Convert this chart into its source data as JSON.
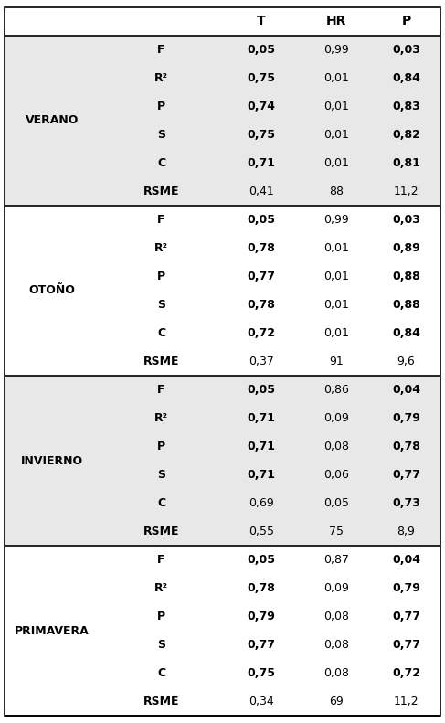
{
  "seasons": [
    "VERANO",
    "OTOÑO",
    "INVIERNO",
    "PRIMAVERA"
  ],
  "metrics": [
    "F",
    "R²",
    "P",
    "S",
    "C",
    "RSME"
  ],
  "table_data": {
    "VERANO": {
      "F": {
        "T": "0,05",
        "HR": "0,99",
        "P": "0,03",
        "T_bold": true,
        "HR_bold": false,
        "P_bold": true
      },
      "R²": {
        "T": "0,75",
        "HR": "0,01",
        "P": "0,84",
        "T_bold": true,
        "HR_bold": false,
        "P_bold": true
      },
      "P": {
        "T": "0,74",
        "HR": "0,01",
        "P": "0,83",
        "T_bold": true,
        "HR_bold": false,
        "P_bold": true
      },
      "S": {
        "T": "0,75",
        "HR": "0,01",
        "P": "0,82",
        "T_bold": true,
        "HR_bold": false,
        "P_bold": true
      },
      "C": {
        "T": "0,71",
        "HR": "0,01",
        "P": "0,81",
        "T_bold": true,
        "HR_bold": false,
        "P_bold": true
      },
      "RSME": {
        "T": "0,41",
        "HR": "88",
        "P": "11,2",
        "T_bold": false,
        "HR_bold": false,
        "P_bold": false
      }
    },
    "OTOÑO": {
      "F": {
        "T": "0,05",
        "HR": "0,99",
        "P": "0,03",
        "T_bold": true,
        "HR_bold": false,
        "P_bold": true
      },
      "R²": {
        "T": "0,78",
        "HR": "0,01",
        "P": "0,89",
        "T_bold": true,
        "HR_bold": false,
        "P_bold": true
      },
      "P": {
        "T": "0,77",
        "HR": "0,01",
        "P": "0,88",
        "T_bold": true,
        "HR_bold": false,
        "P_bold": true
      },
      "S": {
        "T": "0,78",
        "HR": "0,01",
        "P": "0,88",
        "T_bold": true,
        "HR_bold": false,
        "P_bold": true
      },
      "C": {
        "T": "0,72",
        "HR": "0,01",
        "P": "0,84",
        "T_bold": true,
        "HR_bold": false,
        "P_bold": true
      },
      "RSME": {
        "T": "0,37",
        "HR": "91",
        "P": "9,6",
        "T_bold": false,
        "HR_bold": false,
        "P_bold": false
      }
    },
    "INVIERNO": {
      "F": {
        "T": "0,05",
        "HR": "0,86",
        "P": "0,04",
        "T_bold": true,
        "HR_bold": false,
        "P_bold": true
      },
      "R²": {
        "T": "0,71",
        "HR": "0,09",
        "P": "0,79",
        "T_bold": true,
        "HR_bold": false,
        "P_bold": true
      },
      "P": {
        "T": "0,71",
        "HR": "0,08",
        "P": "0,78",
        "T_bold": true,
        "HR_bold": false,
        "P_bold": true
      },
      "S": {
        "T": "0,71",
        "HR": "0,06",
        "P": "0,77",
        "T_bold": true,
        "HR_bold": false,
        "P_bold": true
      },
      "C": {
        "T": "0,69",
        "HR": "0,05",
        "P": "0,73",
        "T_bold": false,
        "HR_bold": false,
        "P_bold": true
      },
      "RSME": {
        "T": "0,55",
        "HR": "75",
        "P": "8,9",
        "T_bold": false,
        "HR_bold": false,
        "P_bold": false
      }
    },
    "PRIMAVERA": {
      "F": {
        "T": "0,05",
        "HR": "0,87",
        "P": "0,04",
        "T_bold": true,
        "HR_bold": false,
        "P_bold": true
      },
      "R²": {
        "T": "0,78",
        "HR": "0,09",
        "P": "0,79",
        "T_bold": true,
        "HR_bold": false,
        "P_bold": true
      },
      "P": {
        "T": "0,79",
        "HR": "0,08",
        "P": "0,77",
        "T_bold": true,
        "HR_bold": false,
        "P_bold": true
      },
      "S": {
        "T": "0,77",
        "HR": "0,08",
        "P": "0,77",
        "T_bold": true,
        "HR_bold": false,
        "P_bold": true
      },
      "C": {
        "T": "0,75",
        "HR": "0,08",
        "P": "0,72",
        "T_bold": true,
        "HR_bold": false,
        "P_bold": true
      },
      "RSME": {
        "T": "0,34",
        "HR": "69",
        "P": "11,2",
        "T_bold": false,
        "HR_bold": false,
        "P_bold": false
      }
    }
  },
  "bg_color_odd": "#e8e8e8",
  "bg_color_even": "#ffffff",
  "header_bg": "#ffffff",
  "font_size": 9,
  "season_font_size": 9,
  "header_font_size": 10
}
